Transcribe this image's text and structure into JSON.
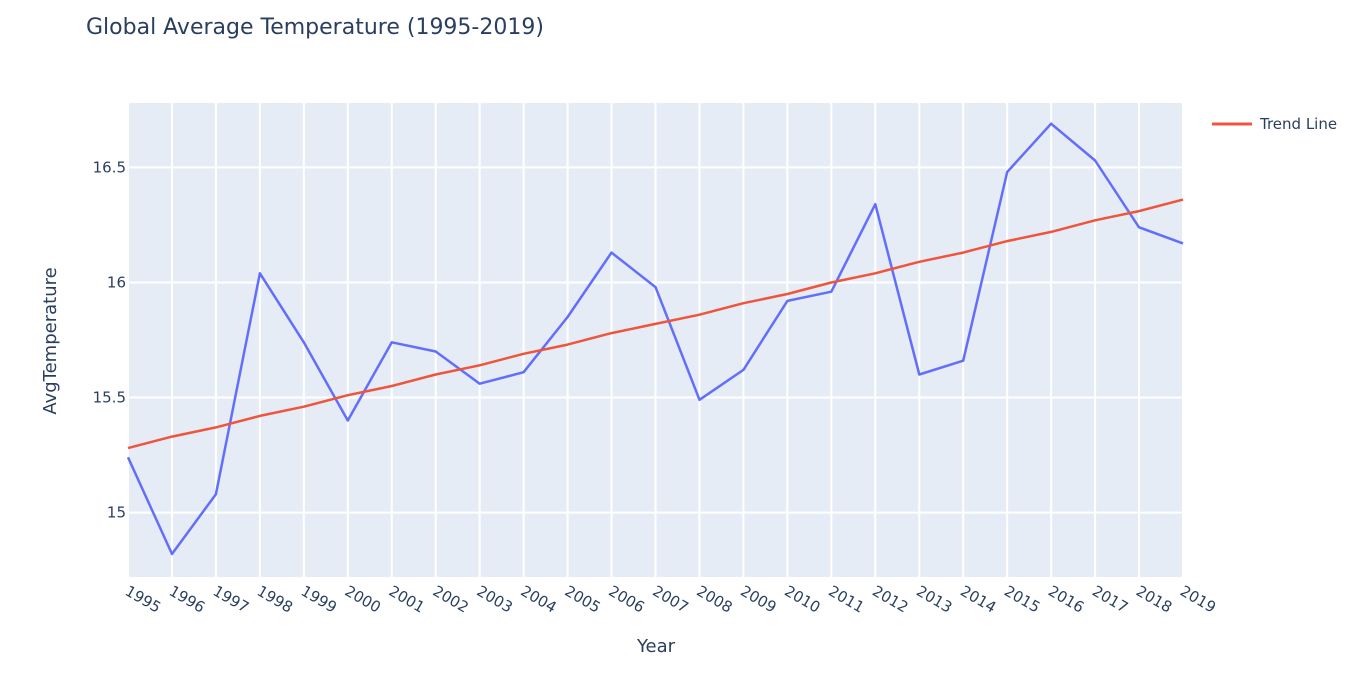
{
  "chart_data": {
    "type": "line",
    "title": "Global Average Temperature (1995-2019)",
    "xlabel": "Year",
    "ylabel": "AvgTemperature",
    "x": [
      1995,
      1996,
      1997,
      1998,
      1999,
      2000,
      2001,
      2002,
      2003,
      2004,
      2005,
      2006,
      2007,
      2008,
      2009,
      2010,
      2011,
      2012,
      2013,
      2014,
      2015,
      2016,
      2017,
      2018,
      2019
    ],
    "series": [
      {
        "color": "#636efa",
        "values": [
          15.24,
          14.82,
          15.08,
          16.04,
          15.74,
          15.4,
          15.74,
          15.7,
          15.56,
          15.61,
          15.85,
          16.13,
          15.98,
          15.49,
          15.62,
          15.92,
          15.96,
          16.34,
          15.6,
          15.66,
          16.48,
          16.69,
          16.53,
          16.24,
          16.17
        ]
      },
      {
        "name": "Trend Line",
        "color": "#ef553b",
        "values": [
          15.28,
          15.33,
          15.37,
          15.42,
          15.46,
          15.51,
          15.55,
          15.6,
          15.64,
          15.69,
          15.73,
          15.78,
          15.82,
          15.86,
          15.91,
          15.95,
          16.0,
          16.04,
          16.09,
          16.13,
          16.18,
          16.22,
          16.27,
          16.31,
          16.36
        ]
      }
    ],
    "xlim": [
      1995,
      2019
    ],
    "ylim": [
      14.72,
      16.78
    ],
    "yticks": [
      15,
      15.5,
      16,
      16.5
    ],
    "ytick_labels": [
      "15",
      "15.5",
      "16",
      "16.5"
    ],
    "grid": true,
    "legend_position": "top-right",
    "plot_bg": "#e5ecf6",
    "grid_color": "#ffffff",
    "text_color": "#2a3f5f"
  }
}
